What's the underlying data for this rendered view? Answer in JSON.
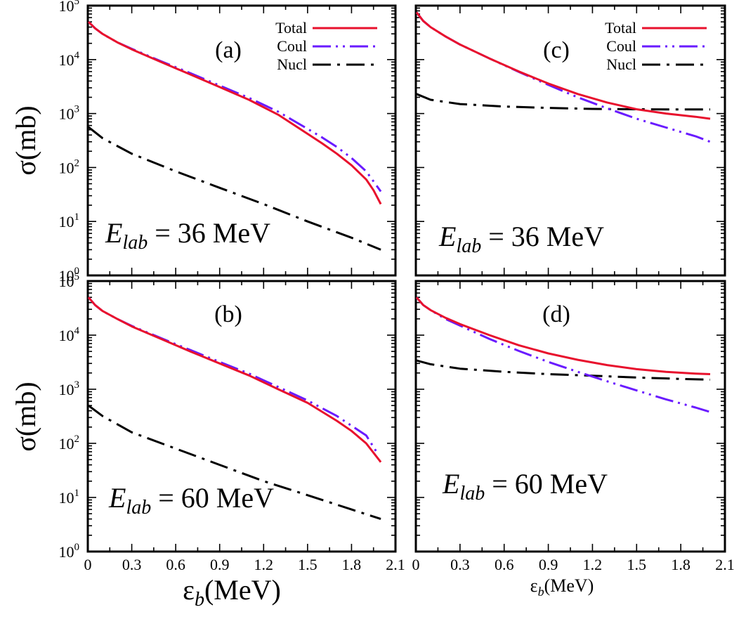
{
  "chart_data": [
    {
      "type": "line",
      "panel_label": "(a)",
      "energy_label": {
        "symbol": "E",
        "subscript": "lab",
        "rest": " = 36 MeV"
      },
      "xlabel": "ε_b(MeV)",
      "ylabel": "σ(mb)",
      "xlim": [
        0,
        2.1
      ],
      "ylim_log10": [
        0,
        5
      ],
      "y_scale": "log",
      "legend": [
        "Total",
        "Coul",
        "Nucl"
      ],
      "legend_position": "top-right",
      "series": [
        {
          "name": "Total",
          "color": "#e8112d",
          "dash": "solid",
          "x": [
            0.005,
            0.05,
            0.1,
            0.2,
            0.3,
            0.5,
            0.7,
            0.9,
            1.1,
            1.3,
            1.5,
            1.6,
            1.7,
            1.8,
            1.9,
            1.95,
            2.0
          ],
          "y": [
            50000,
            38000,
            30000,
            21000,
            15500,
            9000,
            5300,
            3100,
            1800,
            950,
            420,
            280,
            180,
            110,
            60,
            38,
            21
          ]
        },
        {
          "name": "Coul",
          "color": "#6a1bff",
          "dash": "dash-dot-dot",
          "x": [
            0.005,
            0.05,
            0.1,
            0.2,
            0.3,
            0.5,
            0.7,
            0.9,
            1.1,
            1.3,
            1.5,
            1.6,
            1.7,
            1.8,
            1.9,
            2.0
          ],
          "y": [
            50000,
            38000,
            30000,
            21000,
            15800,
            9300,
            5600,
            3300,
            1950,
            1080,
            520,
            360,
            240,
            150,
            85,
            36
          ]
        },
        {
          "name": "Nucl",
          "color": "#000000",
          "dash": "dash-dot",
          "x": [
            0.005,
            0.1,
            0.3,
            0.6,
            0.9,
            1.2,
            1.5,
            1.8,
            2.0
          ],
          "y": [
            560,
            350,
            180,
            85,
            42,
            21,
            10,
            5,
            3
          ]
        }
      ]
    },
    {
      "type": "line",
      "panel_label": "(b)",
      "energy_label": {
        "symbol": "E",
        "subscript": "lab",
        "rest": " = 60 MeV"
      },
      "xlabel": "ε_b(MeV)",
      "ylabel": "σ(mb)",
      "xlim": [
        0,
        2.1
      ],
      "ylim_log10": [
        0,
        5
      ],
      "y_scale": "log",
      "series": [
        {
          "name": "Total",
          "color": "#e8112d",
          "dash": "solid",
          "x": [
            0.005,
            0.05,
            0.1,
            0.2,
            0.3,
            0.5,
            0.7,
            0.9,
            1.1,
            1.3,
            1.5,
            1.7,
            1.8,
            1.9,
            2.0
          ],
          "y": [
            50000,
            36000,
            28000,
            20000,
            14500,
            8500,
            5000,
            3000,
            1800,
            1000,
            560,
            260,
            170,
            100,
            45
          ]
        },
        {
          "name": "Coul",
          "color": "#6a1bff",
          "dash": "dash-dot-dot",
          "x": [
            0.005,
            0.05,
            0.1,
            0.2,
            0.3,
            0.5,
            0.7,
            0.9,
            1.1,
            1.3,
            1.5,
            1.7,
            1.9,
            1.97
          ],
          "y": [
            50000,
            36000,
            28000,
            20000,
            14800,
            8800,
            5300,
            3200,
            1950,
            1100,
            620,
            320,
            140,
            70
          ]
        },
        {
          "name": "Nucl",
          "color": "#000000",
          "dash": "dash-dot",
          "x": [
            0.005,
            0.1,
            0.3,
            0.6,
            0.9,
            1.2,
            1.5,
            1.8,
            2.0
          ],
          "y": [
            500,
            320,
            160,
            80,
            40,
            20,
            11,
            6,
            4
          ]
        }
      ]
    },
    {
      "type": "line",
      "panel_label": "(c)",
      "energy_label": {
        "symbol": "E",
        "subscript": "lab",
        "rest": " = 36 MeV"
      },
      "xlabel": "ε_b(MeV)",
      "ylabel": "σ(mb)",
      "xlim": [
        0,
        2.1
      ],
      "ylim_log10": [
        0,
        5
      ],
      "y_scale": "log",
      "legend": [
        "Total",
        "Coul",
        "Nucl"
      ],
      "legend_position": "top-right",
      "series": [
        {
          "name": "Total",
          "color": "#e8112d",
          "dash": "solid",
          "x": [
            0.005,
            0.05,
            0.1,
            0.2,
            0.3,
            0.5,
            0.7,
            0.9,
            1.1,
            1.3,
            1.5,
            1.7,
            1.9,
            2.0
          ],
          "y": [
            75000,
            52000,
            40000,
            27000,
            19000,
            10500,
            6000,
            3600,
            2300,
            1600,
            1200,
            1000,
            870,
            800
          ]
        },
        {
          "name": "Coul",
          "color": "#6a1bff",
          "dash": "dash-dot-dot",
          "x": [
            0.005,
            0.05,
            0.1,
            0.2,
            0.3,
            0.5,
            0.7,
            0.9,
            1.1,
            1.3,
            1.5,
            1.7,
            1.9,
            2.0
          ],
          "y": [
            75000,
            52000,
            40000,
            27000,
            19000,
            10500,
            5900,
            3400,
            2000,
            1250,
            800,
            550,
            380,
            300
          ]
        },
        {
          "name": "Nucl",
          "color": "#000000",
          "dash": "dash-dot",
          "x": [
            0.005,
            0.1,
            0.3,
            0.6,
            0.9,
            1.2,
            1.5,
            1.8,
            2.0
          ],
          "y": [
            2300,
            1800,
            1500,
            1350,
            1270,
            1220,
            1200,
            1190,
            1190
          ]
        }
      ]
    },
    {
      "type": "line",
      "panel_label": "(d)",
      "energy_label": {
        "symbol": "E",
        "subscript": "lab",
        "rest": " = 60 MeV"
      },
      "xlabel": "ε_b(MeV)",
      "ylabel": "σ(mb)",
      "xlim": [
        0,
        2.1
      ],
      "ylim_log10": [
        0,
        5
      ],
      "y_scale": "log",
      "series": [
        {
          "name": "Total",
          "color": "#e8112d",
          "dash": "solid",
          "x": [
            0.005,
            0.05,
            0.1,
            0.2,
            0.3,
            0.5,
            0.7,
            0.9,
            1.1,
            1.3,
            1.5,
            1.7,
            1.9,
            2.0
          ],
          "y": [
            50000,
            36000,
            29000,
            21000,
            16000,
            10000,
            6500,
            4600,
            3500,
            2800,
            2350,
            2100,
            1950,
            1900
          ]
        },
        {
          "name": "Coul",
          "color": "#6a1bff",
          "dash": "dash-dot-dot",
          "x": [
            0.005,
            0.05,
            0.1,
            0.2,
            0.3,
            0.5,
            0.7,
            0.9,
            1.1,
            1.3,
            1.5,
            1.7,
            1.9,
            2.0
          ],
          "y": [
            50000,
            36000,
            29000,
            20000,
            15000,
            8500,
            5100,
            3200,
            2100,
            1400,
            950,
            650,
            460,
            380
          ]
        },
        {
          "name": "Nucl",
          "color": "#000000",
          "dash": "dash-dot",
          "x": [
            0.005,
            0.1,
            0.3,
            0.6,
            0.9,
            1.2,
            1.5,
            1.8,
            2.0
          ],
          "y": [
            3400,
            2900,
            2400,
            2100,
            1900,
            1780,
            1650,
            1550,
            1500
          ]
        }
      ]
    }
  ],
  "axes_text": {
    "x_ticks": [
      "0",
      "0.3",
      "0.6",
      "0.9",
      "1.2",
      "1.5",
      "1.8",
      "2.1"
    ],
    "y_tick_base": "10",
    "y_tick_exponents": [
      "0",
      "1",
      "2",
      "3",
      "4",
      "5"
    ],
    "xlabel_main": "ε",
    "xlabel_sub": "b",
    "xlabel_unit": "(MeV)",
    "ylabel": "σ(mb)"
  }
}
